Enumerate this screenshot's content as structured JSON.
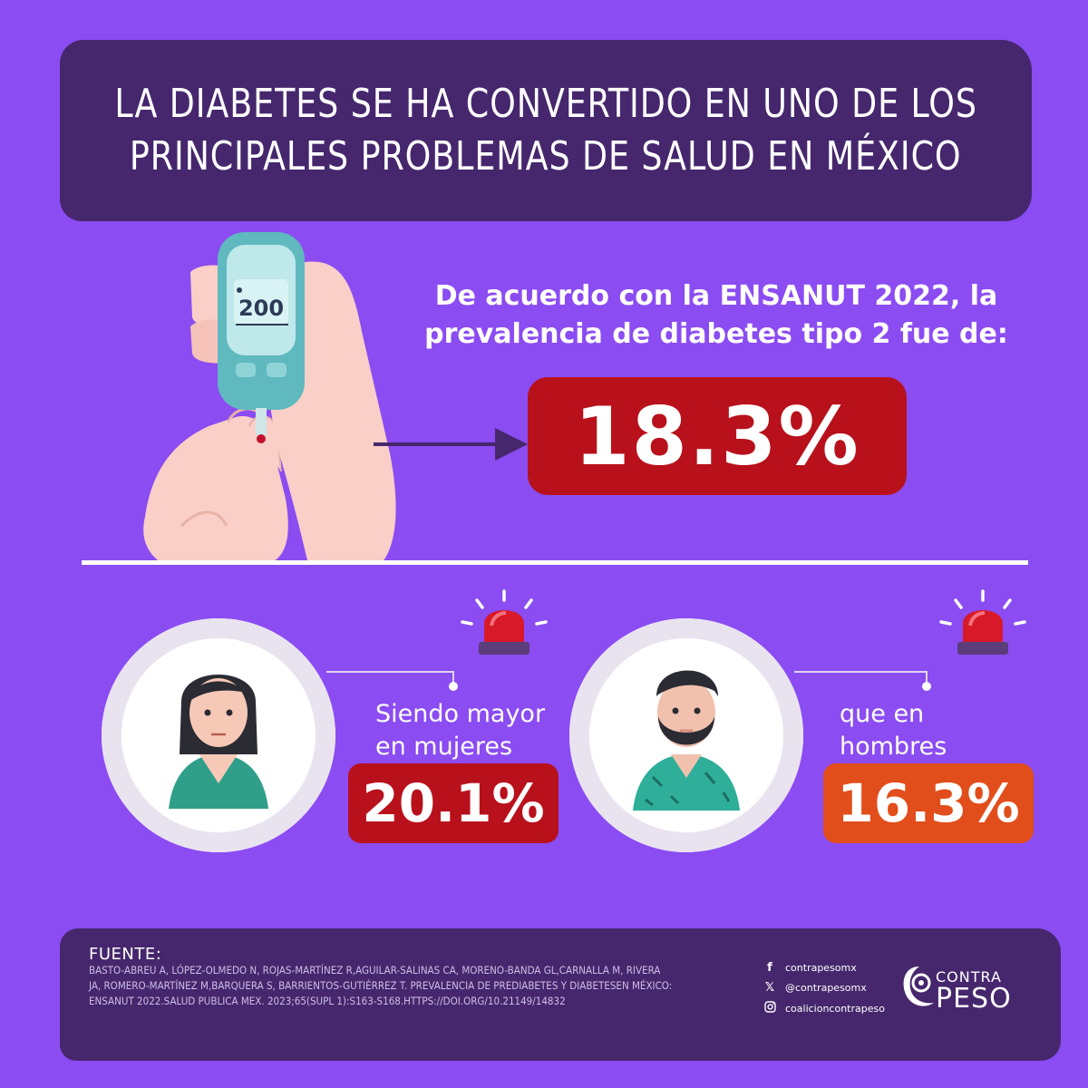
{
  "title": {
    "line1": "LA DIABETES SE HA CONVERTIDO EN UNO DE LOS",
    "line2": "PRINCIPALES PROBLEMAS DE SALUD EN MÉXICO"
  },
  "glucometer_reading": "200",
  "intro": {
    "line1": "De acuerdo con la ENSANUT 2022, la",
    "line2": "prevalencia de diabetes tipo 2 fue de:"
  },
  "prevalence": {
    "overall": "18.3%",
    "women_caption_line1": "Siendo mayor",
    "women_caption_line2": "en mujeres",
    "women_value": "20.1%",
    "men_caption_line1": "que en",
    "men_caption_line2": "hombres",
    "men_value": "16.3%"
  },
  "colors": {
    "background": "#8b4cf2",
    "banner": "#46276d",
    "stat_red": "#b8111c",
    "stat_orange": "#e24e1b"
  },
  "icons": {
    "glucometer": "glucometer-hand-icon",
    "alarm": "siren-icon",
    "woman": "woman-avatar",
    "man": "man-avatar"
  },
  "footer": {
    "source_label": "FUENTE:",
    "source_line1": "BASTO-ABREU A, LÓPEZ-OLMEDO N, ROJAS-MARTÍNEZ R,AGUILAR-SALINAS CA, MORENO-BANDA GL,CARNALLA M, RIVERA",
    "source_line2": "JA, ROMERO-MARTÍNEZ M,BARQUERA S, BARRIENTOS-GUTIÉRREZ T. PREVALENCIA DE PREDIABETES Y DIABETESEN MÉXICO:",
    "source_line3": "ENSANUT 2022.SALUD PUBLICA MEX. 2023;65(SUPL 1):S163-S168.HTTPS://DOI.ORG/10.21149/14832",
    "social": {
      "facebook": "contrapesomx",
      "x": "@contrapesomx",
      "instagram": "coalicioncontrapeso"
    },
    "logo_top": "CONTRA",
    "logo_bottom": "PESO"
  }
}
